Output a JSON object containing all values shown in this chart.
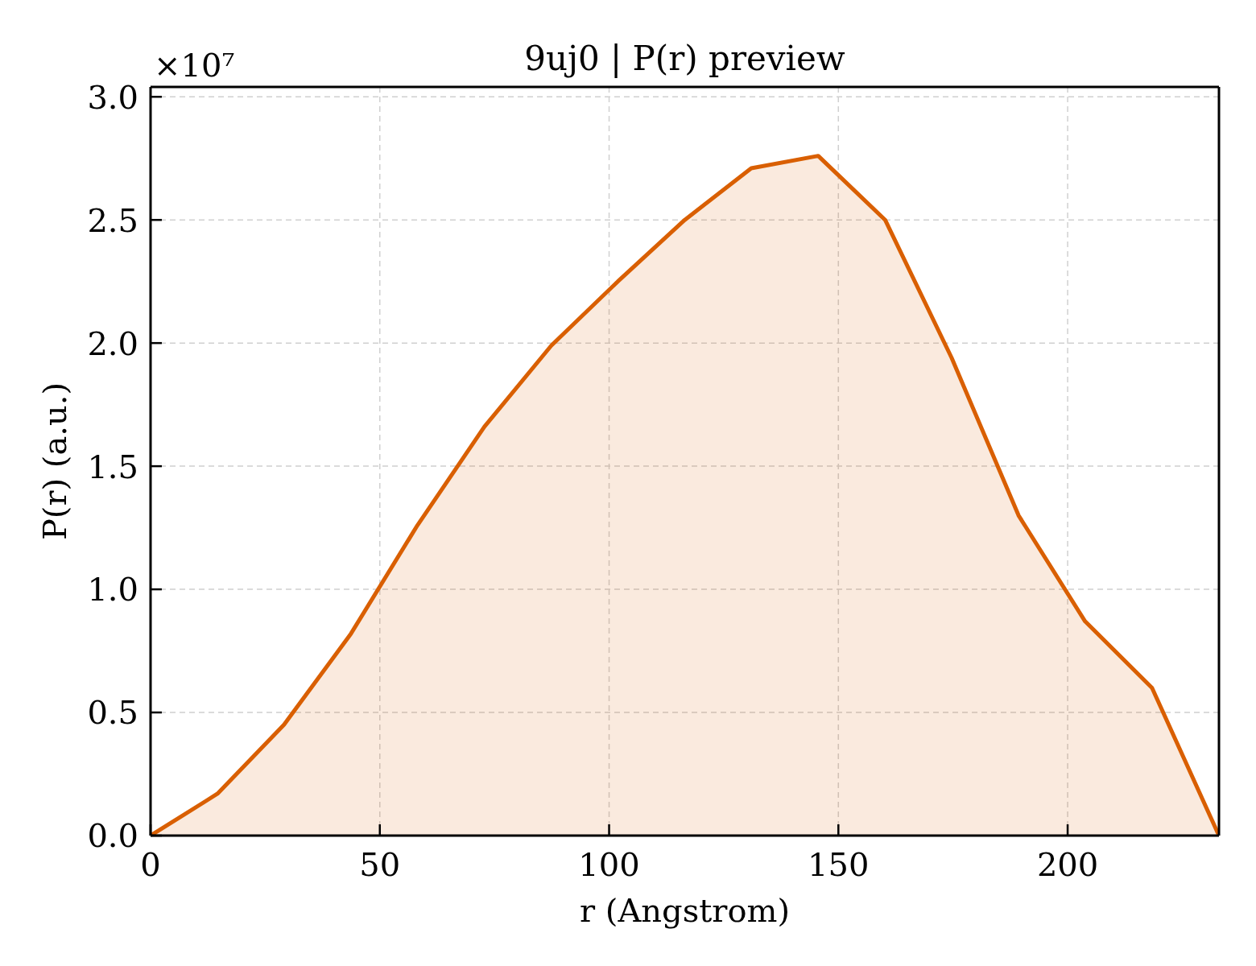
{
  "chart_data": {
    "type": "area",
    "title": "9uj0 | P(r) preview",
    "xlabel": "r (Angstrom)",
    "ylabel": "P(r) (a.u.)",
    "annotations": [
      "×10⁷"
    ],
    "x": [
      0,
      14.6,
      29.1,
      43.7,
      58.2,
      72.8,
      87.4,
      101.9,
      116.5,
      131.0,
      145.6,
      160.2,
      174.7,
      189.3,
      203.8,
      218.4,
      233
    ],
    "series": [
      {
        "color": "#d95f02",
        "values": [
          0,
          0.17,
          0.45,
          0.82,
          1.26,
          1.66,
          1.99,
          2.25,
          2.5,
          2.71,
          2.76,
          2.5,
          1.94,
          1.3,
          0.87,
          0.6,
          0
        ]
      }
    ],
    "xlim": [
      0,
      233
    ],
    "ylim": [
      0,
      3.04
    ],
    "xticks": [
      0,
      50,
      100,
      150,
      200
    ],
    "yticks": [
      {
        "value": 0,
        "label": "0.0"
      },
      0.5,
      {
        "value": 1,
        "label": "1.0"
      },
      1.5,
      {
        "value": 2,
        "label": "2.0"
      },
      2.5,
      {
        "value": 3,
        "label": "3.0"
      }
    ],
    "grid": true
  }
}
